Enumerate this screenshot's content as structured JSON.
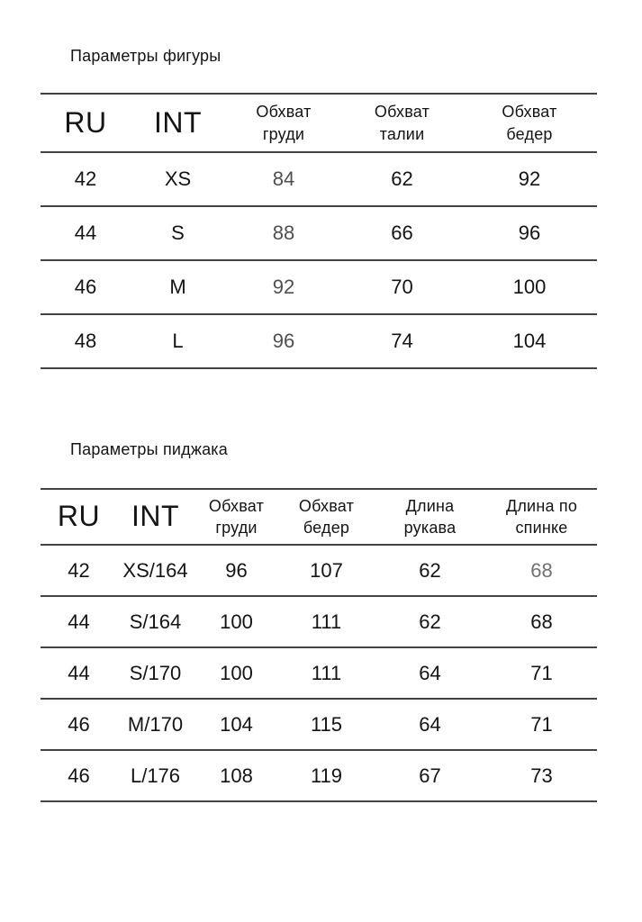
{
  "page": {
    "background": "#ffffff",
    "colors": {
      "text": "#141414",
      "rule": "#434343",
      "muted_figure": "#4f4f4f",
      "muted_jacket": "#707070"
    }
  },
  "tables": [
    {
      "title": "Параметры фигуры",
      "columns": [
        "RU",
        "INT",
        "Обхват\nгруди",
        "Обхват\nталии",
        "Обхват\nбедер"
      ],
      "big_columns": [
        0,
        1
      ],
      "rows": [
        [
          "42",
          "XS",
          "84",
          "62",
          "92"
        ],
        [
          "44",
          "S",
          "88",
          "66",
          "96"
        ],
        [
          "46",
          "M",
          "92",
          "70",
          "100"
        ],
        [
          "48",
          "L",
          "96",
          "74",
          "104"
        ]
      ],
      "gray_cells": [
        [
          0,
          2
        ],
        [
          1,
          2
        ],
        [
          2,
          2
        ],
        [
          3,
          2
        ]
      ]
    },
    {
      "title": "Параметры пиджака",
      "columns": [
        "RU",
        "INT",
        "Обхват\nгруди",
        "Обхват\nбедер",
        "Длина\nрукава",
        "Длина по\nспинке"
      ],
      "big_columns": [
        0,
        1
      ],
      "rows": [
        [
          "42",
          "XS/164",
          "96",
          "107",
          "62",
          "68"
        ],
        [
          "44",
          "S/164",
          "100",
          "111",
          "62",
          "68"
        ],
        [
          "44",
          "S/170",
          "100",
          "111",
          "64",
          "71"
        ],
        [
          "46",
          "M/170",
          "104",
          "115",
          "64",
          "71"
        ],
        [
          "46",
          "L/176",
          "108",
          "119",
          "67",
          "73"
        ]
      ],
      "gray_cells": [
        [
          0,
          5
        ]
      ]
    }
  ]
}
